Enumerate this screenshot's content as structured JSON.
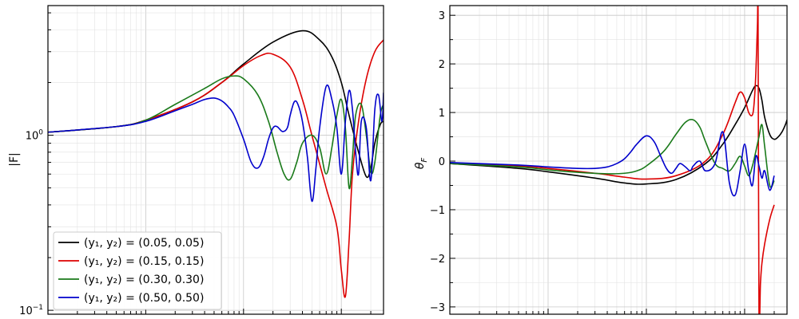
{
  "chart_data": [
    {
      "type": "line",
      "panel": "left",
      "ylabel": "|F|",
      "xscale": "log",
      "yscale": "log",
      "xlim": [
        0.0001,
        0.27
      ],
      "ylim": [
        0.095,
        5.5
      ],
      "grid": true,
      "legend_position": "lower-left",
      "y_ticks": [
        {
          "value": 0.1,
          "base": "10",
          "exp": "−1"
        },
        {
          "value": 1,
          "base": "10",
          "exp": "0"
        }
      ],
      "series": [
        {
          "name": "(y₁, y₂) = (0.05, 0.05)",
          "color": "#000000",
          "x": [
            0.0001,
            0.0005,
            0.001,
            0.003,
            0.006,
            0.01,
            0.02,
            0.04,
            0.06,
            0.08,
            0.1,
            0.12,
            0.15,
            0.18,
            0.2,
            0.22,
            0.25,
            0.27
          ],
          "y": [
            1.04,
            1.12,
            1.22,
            1.55,
            2.0,
            2.55,
            3.4,
            3.95,
            3.5,
            2.8,
            2.0,
            1.3,
            0.8,
            0.58,
            0.65,
            0.9,
            1.15,
            1.2
          ]
        },
        {
          "name": "(y₁, y₂) = (0.15, 0.15)",
          "color": "#dd0000",
          "x": [
            0.0001,
            0.0005,
            0.001,
            0.003,
            0.006,
            0.01,
            0.015,
            0.02,
            0.03,
            0.04,
            0.05,
            0.07,
            0.09,
            0.1,
            0.11,
            0.12,
            0.13,
            0.15,
            0.18,
            0.22,
            0.27
          ],
          "y": [
            1.04,
            1.12,
            1.22,
            1.55,
            2.0,
            2.5,
            2.85,
            2.9,
            2.45,
            1.6,
            1.0,
            0.5,
            0.3,
            0.17,
            0.12,
            0.25,
            0.6,
            1.2,
            2.1,
            3.0,
            3.5
          ]
        },
        {
          "name": "(y₁, y₂) = (0.30, 0.30)",
          "color": "#1a7a1a",
          "x": [
            0.0001,
            0.0005,
            0.001,
            0.002,
            0.004,
            0.006,
            0.008,
            0.01,
            0.014,
            0.018,
            0.022,
            0.026,
            0.03,
            0.035,
            0.04,
            0.05,
            0.06,
            0.07,
            0.08,
            0.09,
            0.1,
            0.11,
            0.12,
            0.13,
            0.14,
            0.16,
            0.18,
            0.2,
            0.22,
            0.25,
            0.27
          ],
          "y": [
            1.04,
            1.12,
            1.22,
            1.5,
            1.85,
            2.1,
            2.18,
            2.1,
            1.7,
            1.2,
            0.8,
            0.6,
            0.56,
            0.7,
            0.9,
            1.0,
            0.85,
            0.6,
            0.85,
            1.3,
            1.6,
            1.1,
            0.5,
            0.75,
            1.3,
            1.5,
            1.0,
            0.62,
            0.7,
            1.3,
            1.5
          ]
        },
        {
          "name": "(y₁, y₂) = (0.50, 0.50)",
          "color": "#0000cc",
          "x": [
            0.0001,
            0.0005,
            0.001,
            0.002,
            0.003,
            0.004,
            0.005,
            0.006,
            0.007,
            0.008,
            0.01,
            0.012,
            0.014,
            0.016,
            0.018,
            0.02,
            0.022,
            0.025,
            0.028,
            0.03,
            0.033,
            0.036,
            0.04,
            0.045,
            0.05,
            0.055,
            0.06,
            0.07,
            0.08,
            0.09,
            0.1,
            0.11,
            0.12,
            0.13,
            0.14,
            0.15,
            0.16,
            0.18,
            0.2,
            0.22,
            0.24,
            0.26,
            0.27
          ],
          "y": [
            1.04,
            1.12,
            1.2,
            1.38,
            1.5,
            1.6,
            1.63,
            1.57,
            1.45,
            1.3,
            0.95,
            0.7,
            0.65,
            0.75,
            0.95,
            1.1,
            1.12,
            1.05,
            1.1,
            1.3,
            1.55,
            1.5,
            1.2,
            0.75,
            0.42,
            0.65,
            1.1,
            1.9,
            1.6,
            1.1,
            0.6,
            1.2,
            1.8,
            1.4,
            0.8,
            0.6,
            1.2,
            1.1,
            0.55,
            1.4,
            1.7,
            1.2,
            1.75
          ]
        }
      ]
    },
    {
      "type": "line",
      "panel": "right",
      "ylabel": "θ_F",
      "xscale": "log",
      "yscale": "linear",
      "xlim": [
        0.0001,
        0.27
      ],
      "ylim": [
        -3.15,
        3.2
      ],
      "grid": true,
      "y_ticks": [
        {
          "value": 3,
          "label": "3"
        },
        {
          "value": 2,
          "label": "2"
        },
        {
          "value": 1,
          "label": "1"
        },
        {
          "value": 0,
          "label": "0"
        },
        {
          "value": -1,
          "label": "−1"
        },
        {
          "value": -2,
          "label": "−2"
        },
        {
          "value": -3,
          "label": "−3"
        }
      ],
      "series": [
        {
          "name": "(y₁, y₂) = (0.05, 0.05)",
          "color": "#000000",
          "x": [
            0.0001,
            0.0005,
            0.001,
            0.003,
            0.006,
            0.01,
            0.02,
            0.04,
            0.06,
            0.08,
            0.1,
            0.12,
            0.13,
            0.14,
            0.15,
            0.16,
            0.18,
            0.2,
            0.22,
            0.24,
            0.26,
            0.27
          ],
          "y": [
            -0.05,
            -0.15,
            -0.22,
            -0.35,
            -0.45,
            -0.47,
            -0.38,
            -0.05,
            0.35,
            0.75,
            1.1,
            1.45,
            1.55,
            1.5,
            1.25,
            0.9,
            0.55,
            0.45,
            0.5,
            0.6,
            0.75,
            0.85
          ]
        },
        {
          "name": "(y₁, y₂) = (0.15, 0.15)",
          "color": "#dd0000",
          "x": [
            0.0001,
            0.0005,
            0.001,
            0.003,
            0.006,
            0.01,
            0.02,
            0.04,
            0.06,
            0.08,
            0.09,
            0.1,
            0.11,
            0.12,
            0.125,
            0.13,
            0.135,
            0.137,
            0.14,
            0.145,
            0.15,
            0.16,
            0.18,
            0.2
          ],
          "y": [
            -0.05,
            -0.1,
            -0.15,
            -0.25,
            -0.33,
            -0.37,
            -0.3,
            0.0,
            0.55,
            1.2,
            1.42,
            1.3,
            1.0,
            0.95,
            1.2,
            1.8,
            2.8,
            3.1,
            -3.1,
            -2.5,
            -2.1,
            -1.7,
            -1.2,
            -0.9
          ]
        },
        {
          "name": "(y₁, y₂) = (0.30, 0.30)",
          "color": "#1a7a1a",
          "x": [
            0.0001,
            0.0005,
            0.001,
            0.002,
            0.004,
            0.006,
            0.008,
            0.01,
            0.015,
            0.02,
            0.025,
            0.03,
            0.035,
            0.04,
            0.05,
            0.06,
            0.07,
            0.08,
            0.09,
            0.1,
            0.11,
            0.12,
            0.13,
            0.14,
            0.15,
            0.16,
            0.18,
            0.2
          ],
          "y": [
            -0.05,
            -0.12,
            -0.18,
            -0.23,
            -0.26,
            -0.25,
            -0.2,
            -0.1,
            0.2,
            0.55,
            0.8,
            0.85,
            0.7,
            0.4,
            -0.05,
            -0.15,
            -0.2,
            -0.05,
            0.1,
            -0.1,
            -0.3,
            -0.1,
            0.2,
            0.5,
            0.75,
            0.3,
            -0.5,
            -0.4
          ]
        },
        {
          "name": "(y₁, y₂) = (0.50, 0.50)",
          "color": "#0000cc",
          "x": [
            0.0001,
            0.0005,
            0.001,
            0.002,
            0.003,
            0.004,
            0.005,
            0.006,
            0.007,
            0.008,
            0.01,
            0.012,
            0.014,
            0.016,
            0.018,
            0.02,
            0.022,
            0.025,
            0.028,
            0.03,
            0.035,
            0.04,
            0.05,
            0.06,
            0.07,
            0.08,
            0.09,
            0.1,
            0.11,
            0.12,
            0.13,
            0.14,
            0.15,
            0.16,
            0.18,
            0.2
          ],
          "y": [
            -0.03,
            -0.08,
            -0.12,
            -0.15,
            -0.15,
            -0.12,
            -0.05,
            0.05,
            0.2,
            0.35,
            0.52,
            0.4,
            0.1,
            -0.15,
            -0.25,
            -0.15,
            -0.05,
            -0.12,
            -0.2,
            -0.1,
            0.0,
            -0.2,
            -0.05,
            0.6,
            -0.45,
            -0.7,
            -0.2,
            0.35,
            -0.2,
            -0.5,
            0.1,
            -0.1,
            -0.35,
            -0.2,
            -0.6,
            -0.3
          ]
        }
      ]
    }
  ]
}
